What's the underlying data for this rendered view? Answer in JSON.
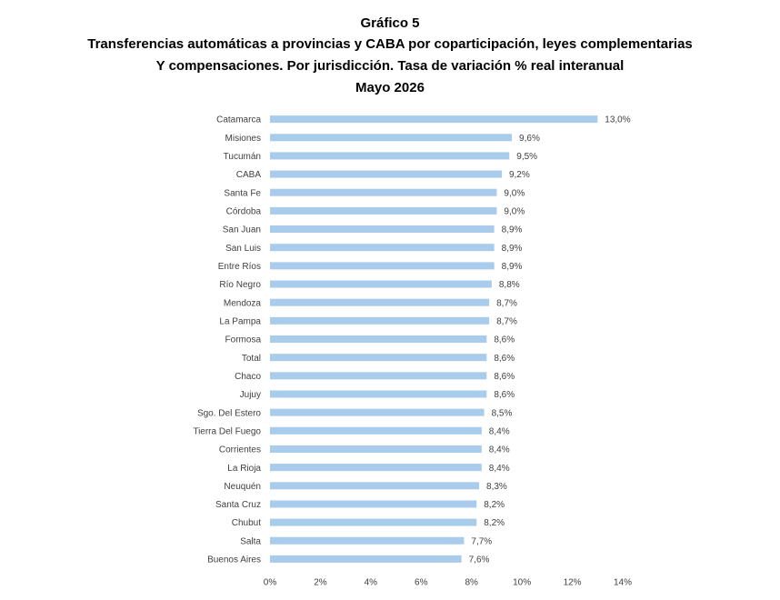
{
  "chart_data": {
    "type": "barh",
    "title": "Gráfico 5",
    "subtitle": [
      "Transferencias automáticas a provincias y CABA por coparticipación, leyes complementarias",
      "Y compensaciones. Por jurisdicción. Tasa de variación % real interanual",
      "Mayo 2026"
    ],
    "categories": [
      "Catamarca",
      "Misiones",
      "Tucumán",
      "CABA",
      "Santa Fe",
      "Córdoba",
      "San Juan",
      "San Luis",
      "Entre Ríos",
      "Río Negro",
      "Mendoza",
      "La Pampa",
      "Formosa",
      "Total",
      "Chaco",
      "Jujuy",
      "Sgo. Del Estero",
      "Tierra Del Fuego",
      "Corrientes",
      "La Rioja",
      "Neuquén",
      "Santa Cruz",
      "Chubut",
      "Salta",
      "Buenos Aires"
    ],
    "values": [
      13.0,
      9.6,
      9.5,
      9.2,
      9.0,
      9.0,
      8.9,
      8.9,
      8.9,
      8.8,
      8.7,
      8.7,
      8.6,
      8.6,
      8.6,
      8.6,
      8.5,
      8.4,
      8.4,
      8.4,
      8.3,
      8.2,
      8.2,
      7.7,
      7.6
    ],
    "value_labels": [
      "13,0%",
      "9,6%",
      "9,5%",
      "9,2%",
      "9,0%",
      "9,0%",
      "8,9%",
      "8,9%",
      "8,9%",
      "8,8%",
      "8,7%",
      "8,7%",
      "8,6%",
      "8,6%",
      "8,6%",
      "8,6%",
      "8,5%",
      "8,4%",
      "8,4%",
      "8,4%",
      "8,3%",
      "8,2%",
      "8,2%",
      "7,7%",
      "7,6%"
    ],
    "color": "#a9cbec",
    "xlim": [
      0,
      14
    ],
    "xticks": [
      {
        "value": 0,
        "label": "0%"
      },
      {
        "value": 2,
        "label": "2%"
      },
      {
        "value": 4,
        "label": "4%"
      },
      {
        "value": 6,
        "label": "6%"
      },
      {
        "value": 8,
        "label": "8%"
      },
      {
        "value": 10,
        "label": "10%"
      },
      {
        "value": 12,
        "label": "12%"
      },
      {
        "value": 14,
        "label": "14%"
      }
    ],
    "grid": false
  }
}
